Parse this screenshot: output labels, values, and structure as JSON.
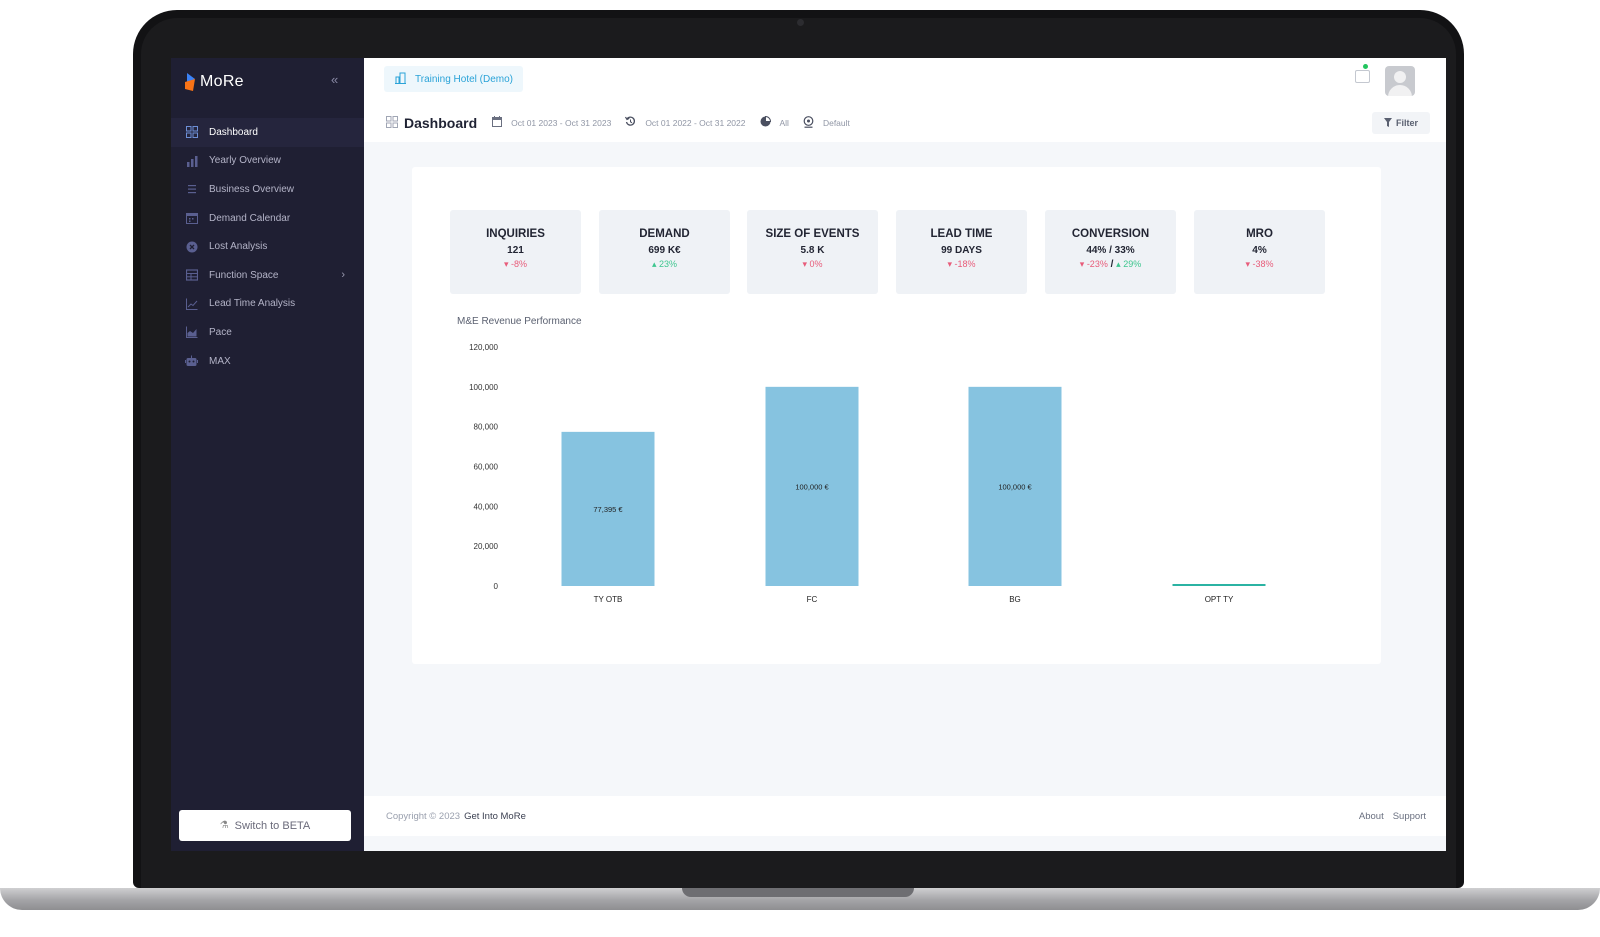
{
  "app": {
    "logo_text": "MoRe",
    "brand_color": "#f97316"
  },
  "sidebar": {
    "items": [
      {
        "label": "Dashboard",
        "icon": "grid-icon",
        "active": true
      },
      {
        "label": "Yearly Overview",
        "icon": "bar-chart-icon"
      },
      {
        "label": "Business Overview",
        "icon": "list-icon"
      },
      {
        "label": "Demand Calendar",
        "icon": "calendar-icon"
      },
      {
        "label": "Lost Analysis",
        "icon": "x-circle-icon"
      },
      {
        "label": "Function Space",
        "icon": "table-icon",
        "has_submenu": true
      },
      {
        "label": "Lead Time Analysis",
        "icon": "line-chart-icon"
      },
      {
        "label": "Pace",
        "icon": "area-chart-icon"
      },
      {
        "label": "MAX",
        "icon": "robot-icon"
      }
    ],
    "beta_button": "Switch to BETA"
  },
  "header": {
    "hotel": "Training Hotel (Demo)"
  },
  "subheader": {
    "title": "Dashboard",
    "date_range": "Oct 01 2023 - Oct 31 2023",
    "compare_range": "Oct 01 2022 - Oct 31 2022",
    "segment": "All",
    "view": "Default",
    "filter_label": "Filter"
  },
  "kpis": [
    {
      "title": "INQUIRIES",
      "value": "121",
      "delta": "-8%",
      "direction": "down"
    },
    {
      "title": "DEMAND",
      "value": "699 K€",
      "delta": "23%",
      "direction": "up"
    },
    {
      "title": "SIZE OF EVENTS",
      "value": "5.8 K",
      "delta": "0%",
      "direction": "down"
    },
    {
      "title": "LEAD TIME",
      "value": "99 DAYS",
      "delta": "-18%",
      "direction": "down"
    },
    {
      "title": "CONVERSION",
      "value": "44% / 33%",
      "delta": "-23%",
      "delta2": "29%",
      "direction": "down"
    },
    {
      "title": "MRO",
      "value": "4%",
      "delta": "-38%",
      "direction": "down"
    }
  ],
  "chart_data": {
    "type": "bar",
    "title": "M&E Revenue Performance",
    "categories": [
      "TY OTB",
      "FC",
      "BG",
      "OPT TY"
    ],
    "values": [
      77395,
      100000,
      100000,
      0
    ],
    "data_labels": [
      "77,395 €",
      "100,000 €",
      "100,000 €",
      ""
    ],
    "ylim": [
      0,
      120000
    ],
    "yticks": [
      0,
      20000,
      40000,
      60000,
      80000,
      100000,
      120000
    ],
    "ytick_labels": [
      "0",
      "20,000",
      "40,000",
      "60,000",
      "80,000",
      "100,000",
      "120,000"
    ],
    "bar_color": "#86c3e0",
    "zero_bar_color": "#2bb3a3",
    "grid": false,
    "legend": "none"
  },
  "footer": {
    "copyright": "Copyright © 2023",
    "company": "Get Into MoRe",
    "links": [
      "About",
      "Support"
    ]
  }
}
